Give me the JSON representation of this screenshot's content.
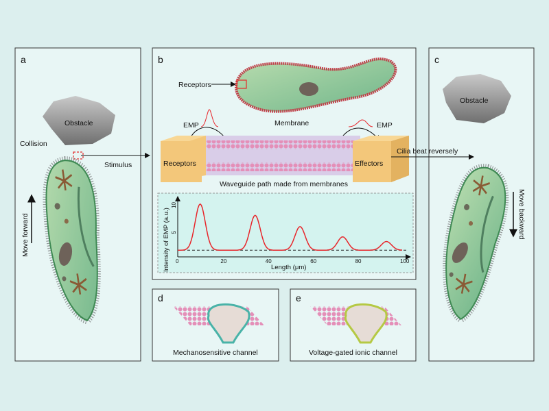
{
  "colors": {
    "background": "#dcefee",
    "panel": "#e8f6f5",
    "chart_bg": "#d4f3ef",
    "curve": "#e8252a",
    "cell": "#8fc78f",
    "block": "#f3c77a"
  },
  "panel_a": {
    "letter": "a",
    "obstacle": "Obstacle",
    "collision": "Collision",
    "stimulus": "Stimulus",
    "move": "Move forward"
  },
  "panel_b": {
    "letter": "b",
    "receptors_top": "Receptors",
    "membrane": "Membrane",
    "emp_left": "EMP",
    "emp_right": "EMP",
    "receptors": "Receptors",
    "effectors": "Effectors",
    "waveguide": "Waveguide path made from membranes"
  },
  "panel_c": {
    "letter": "c",
    "obstacle": "Obstacle",
    "cilia": "Cilia beat reversely",
    "move": "Move backward"
  },
  "panel_d": {
    "letter": "d",
    "caption": "Mechanosensitive channel"
  },
  "panel_e": {
    "letter": "e",
    "caption": "Voltage-gated ionic channel"
  },
  "chart_data": {
    "type": "line",
    "xlabel": "Length (μm)",
    "ylabel": "Intensity of  EMP   (a.u.)",
    "xlim": [
      0,
      100
    ],
    "ylim": [
      0,
      10
    ],
    "xticks": [
      "0",
      "20",
      "40",
      "60",
      "80",
      "100"
    ],
    "yticks": [
      "5",
      "10"
    ],
    "baseline": 1.3,
    "series": [
      {
        "peaks": [
          {
            "x": 10,
            "y": 10.3
          },
          {
            "x": 34.5,
            "y": 8.1
          },
          {
            "x": 54.5,
            "y": 5.9
          },
          {
            "x": 73.5,
            "y": 3.9
          },
          {
            "x": 93,
            "y": 3.0
          }
        ]
      }
    ],
    "grid": false
  }
}
